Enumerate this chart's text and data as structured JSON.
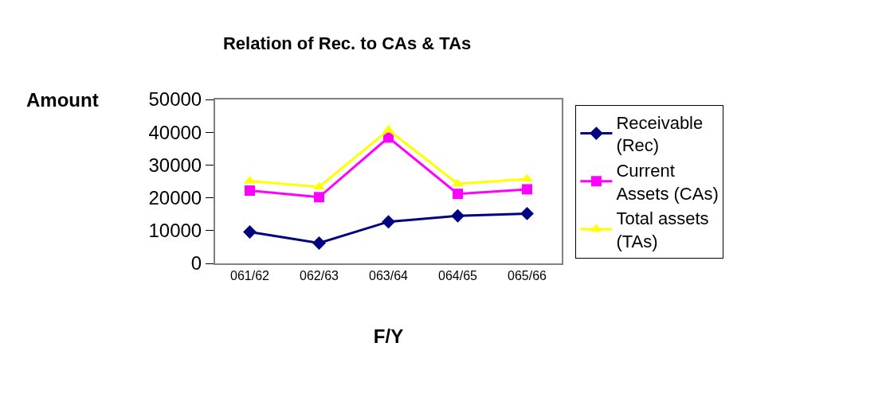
{
  "chart_data": {
    "type": "line",
    "title": "Relation of Rec. to CAs & TAs",
    "xlabel": "F/Y",
    "ylabel": "Amount",
    "categories": [
      "061/62",
      "062/63",
      "063/64",
      "064/65",
      "065/66"
    ],
    "series": [
      {
        "name": "Receivable (Rec)",
        "color": "#000080",
        "marker": "diamond",
        "values": [
          9600,
          6200,
          12700,
          14500,
          15200
        ]
      },
      {
        "name": "Current Assets (CAs)",
        "color": "#ff00ff",
        "marker": "square",
        "values": [
          22200,
          20200,
          38400,
          21200,
          22600
        ]
      },
      {
        "name": "Total assets (TAs)",
        "color": "#ffff00",
        "marker": "triangle",
        "values": [
          25100,
          23300,
          40700,
          24300,
          25700
        ]
      }
    ],
    "ylim": [
      0,
      50000
    ],
    "yticks": [
      0,
      10000,
      20000,
      30000,
      40000,
      50000
    ],
    "legend": "right",
    "line_style": "solid"
  }
}
